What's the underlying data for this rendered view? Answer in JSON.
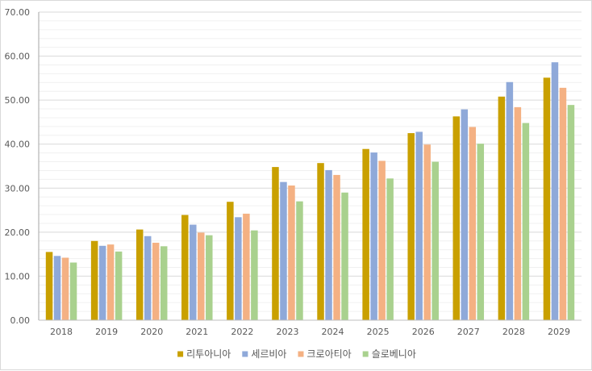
{
  "chart_data": {
    "type": "bar",
    "title": "",
    "xlabel": "",
    "ylabel": "",
    "ylim": [
      0,
      70
    ],
    "y_ticks": [
      "0.00",
      "10.00",
      "20.00",
      "30.00",
      "40.00",
      "50.00",
      "60.00",
      "70.00"
    ],
    "grid": true,
    "legend_position": "bottom",
    "categories": [
      "2018",
      "2019",
      "2020",
      "2021",
      "2022",
      "2023",
      "2024",
      "2025",
      "2026",
      "2027",
      "2028",
      "2029"
    ],
    "series": [
      {
        "name": "리투아니아",
        "color": "#c9a000",
        "values": [
          15.5,
          18.0,
          20.6,
          23.9,
          26.9,
          34.8,
          35.7,
          38.9,
          42.5,
          46.3,
          50.8,
          55.1
        ]
      },
      {
        "name": "세르비아",
        "color": "#8fa9d9",
        "values": [
          14.6,
          16.9,
          19.1,
          21.7,
          23.4,
          31.4,
          34.1,
          38.1,
          42.8,
          47.9,
          54.1,
          58.6
        ]
      },
      {
        "name": "크로아티아",
        "color": "#f4b183",
        "values": [
          14.2,
          17.2,
          17.6,
          19.9,
          24.2,
          30.6,
          33.0,
          36.2,
          39.9,
          43.9,
          48.4,
          52.8
        ]
      },
      {
        "name": "슬로베니아",
        "color": "#a9d18e",
        "values": [
          13.1,
          15.6,
          16.8,
          19.3,
          20.4,
          27.0,
          29.0,
          32.2,
          36.0,
          40.1,
          44.8,
          48.9
        ]
      }
    ]
  }
}
